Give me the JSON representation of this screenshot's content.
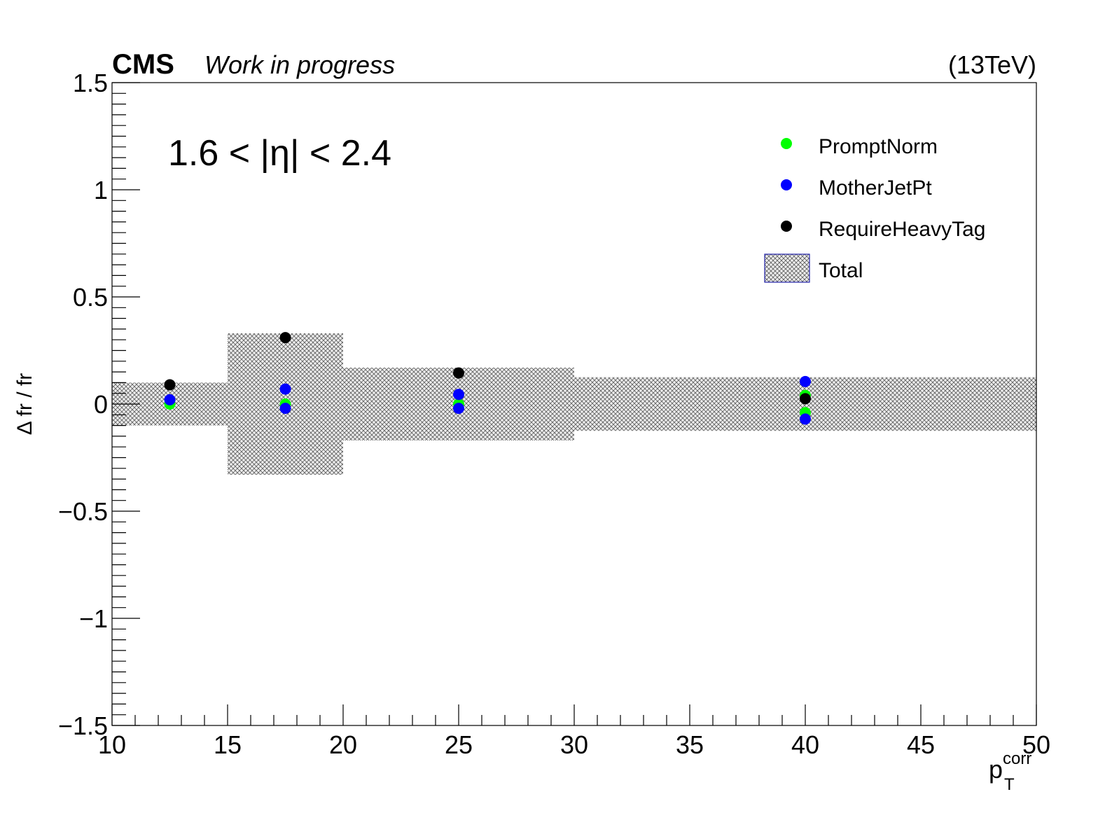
{
  "header": {
    "experiment": "CMS",
    "status": "Work in progress",
    "energy": "(13TeV)"
  },
  "chart_data": {
    "type": "scatter",
    "annotation": "1.6 < |η| < 2.4",
    "xlabel_main": "p",
    "xlabel_sub": "T",
    "xlabel_sup": "corr",
    "ylabel": "Δ fr / fr",
    "xlim": [
      10,
      50
    ],
    "ylim": [
      -1.5,
      1.5
    ],
    "x_ticks": [
      10,
      15,
      20,
      25,
      30,
      35,
      40,
      45,
      50
    ],
    "x_tick_labels": [
      "10",
      "15",
      "20",
      "25",
      "30",
      "35",
      "40",
      "45",
      "50"
    ],
    "y_ticks": [
      -1.5,
      -1,
      -0.5,
      0,
      0.5,
      1,
      1.5
    ],
    "y_tick_labels": [
      "−1.5",
      "−1",
      "−0.5",
      "0",
      "0.5",
      "1",
      "1.5"
    ],
    "legend_position": "top-right",
    "total_band": {
      "name": "Total",
      "fill": "hatched gray",
      "bins": [
        {
          "x_low": 10,
          "x_high": 15,
          "err": 0.1
        },
        {
          "x_low": 15,
          "x_high": 20,
          "err": 0.33
        },
        {
          "x_low": 20,
          "x_high": 30,
          "err": 0.17
        },
        {
          "x_low": 30,
          "x_high": 50,
          "err": 0.125
        }
      ]
    },
    "series": [
      {
        "name": "PromptNorm",
        "color": "#00ff00",
        "points": [
          [
            12.5,
            0.0
          ],
          [
            17.5,
            0.0
          ],
          [
            25,
            0.0
          ],
          [
            40,
            0.04
          ],
          [
            40,
            -0.04
          ]
        ]
      },
      {
        "name": "MotherJetPt",
        "color": "#0000ff",
        "points": [
          [
            12.5,
            0.02
          ],
          [
            17.5,
            0.07
          ],
          [
            17.5,
            -0.02
          ],
          [
            25,
            0.045
          ],
          [
            25,
            -0.02
          ],
          [
            40,
            0.105
          ],
          [
            40,
            -0.07
          ]
        ]
      },
      {
        "name": "RequireHeavyTag",
        "color": "#000000",
        "points": [
          [
            12.5,
            0.09
          ],
          [
            17.5,
            0.31
          ],
          [
            25,
            0.145
          ],
          [
            40,
            0.025
          ]
        ]
      }
    ]
  }
}
